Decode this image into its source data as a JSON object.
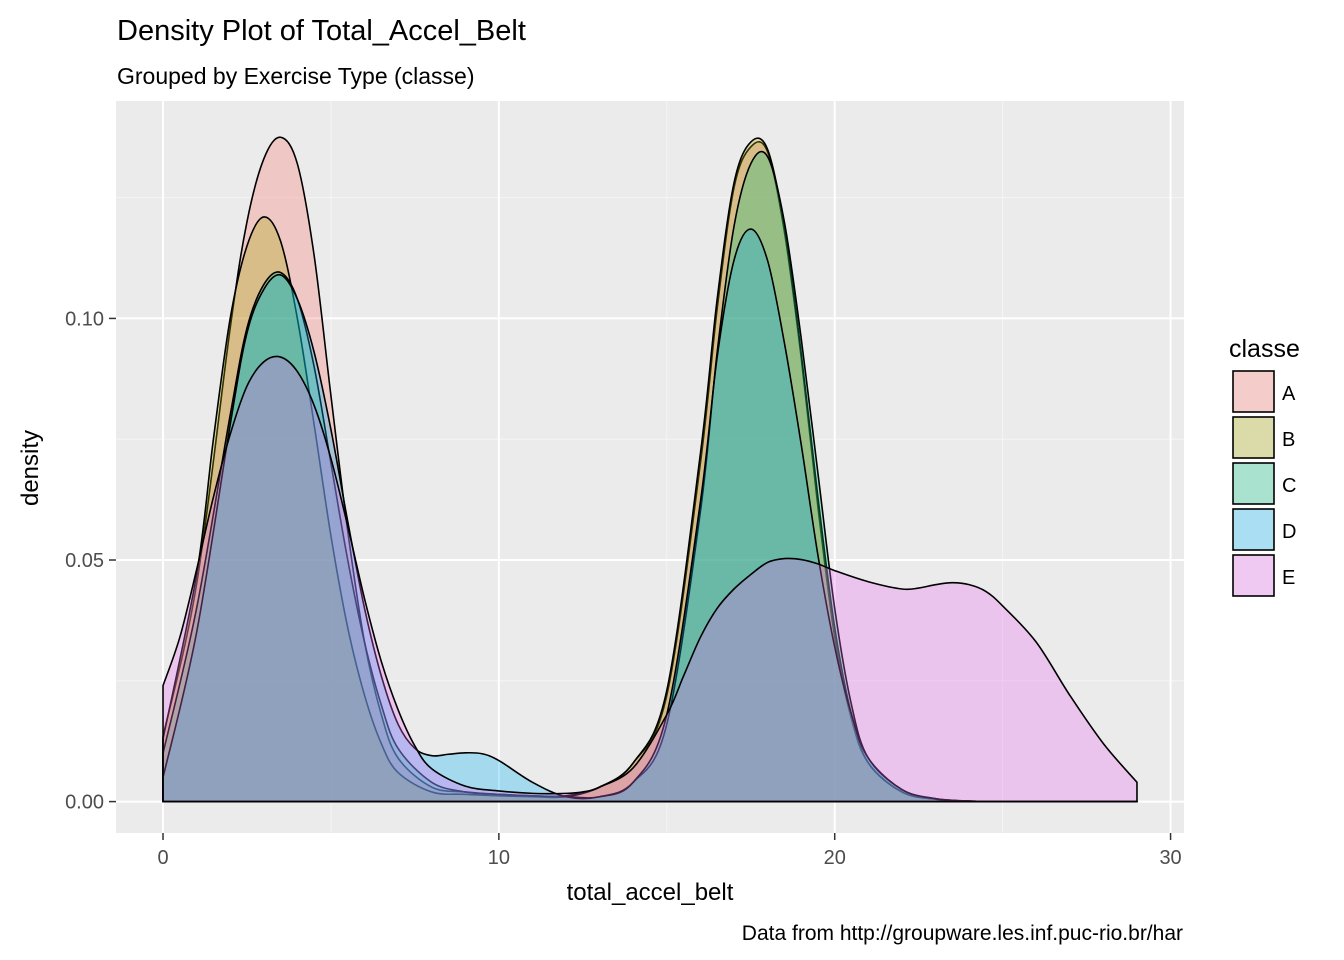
{
  "chart_data": {
    "type": "area",
    "title": "Density Plot of Total_Accel_Belt",
    "subtitle": "Grouped by Exercise Type (classe)",
    "xlabel": "total_accel_belt",
    "ylabel": "density",
    "caption": "Data from http://groupware.les.inf.puc-rio.br/har",
    "xlim": [
      -1.4,
      30.4
    ],
    "ylim": [
      -0.0065,
      0.145
    ],
    "x_ticks": [
      0,
      10,
      20,
      30
    ],
    "x_tick_labels": [
      "0",
      "10",
      "20",
      "30"
    ],
    "y_ticks": [
      0.0,
      0.05,
      0.1
    ],
    "y_tick_labels": [
      "0.00",
      "0.05",
      "0.10"
    ],
    "grid": true,
    "legend": {
      "title": "classe",
      "position": "right",
      "entries": [
        "A",
        "B",
        "C",
        "D",
        "E"
      ]
    },
    "series": [
      {
        "name": "A",
        "color": "#F8766D",
        "x": [
          0,
          1,
          2,
          2.5,
          3,
          3.5,
          4,
          4.5,
          5,
          5.5,
          6,
          6.5,
          7,
          8,
          9,
          10,
          11,
          12,
          13,
          14,
          15,
          16,
          16.5,
          17,
          17.5,
          18,
          18.5,
          19,
          19.5,
          20,
          20.5,
          21,
          22,
          23,
          24,
          25,
          26,
          27,
          28,
          29
        ],
        "y": [
          0.0135,
          0.045,
          0.098,
          0.12,
          0.133,
          0.1375,
          0.132,
          0.113,
          0.084,
          0.056,
          0.033,
          0.018,
          0.009,
          0.003,
          0.002,
          0.0015,
          0.0012,
          0.0012,
          0.003,
          0.008,
          0.022,
          0.07,
          0.102,
          0.127,
          0.1355,
          0.1345,
          0.118,
          0.092,
          0.061,
          0.034,
          0.017,
          0.008,
          0.002,
          0.0005,
          0.0001,
          0,
          0,
          0,
          0,
          0
        ]
      },
      {
        "name": "B",
        "color": "#A3A500",
        "x": [
          0,
          1,
          1.5,
          2,
          2.5,
          3,
          3.5,
          4,
          4.5,
          5,
          5.5,
          6,
          6.5,
          7,
          8,
          9,
          10,
          11,
          12,
          13,
          14,
          15,
          16,
          16.5,
          17,
          17.5,
          18,
          18.5,
          19,
          19.5,
          20,
          20.5,
          21,
          22,
          23,
          24,
          25,
          26,
          27,
          28,
          29
        ],
        "y": [
          0.013,
          0.047,
          0.075,
          0.1,
          0.115,
          0.121,
          0.116,
          0.1,
          0.078,
          0.055,
          0.036,
          0.022,
          0.012,
          0.006,
          0.002,
          0.0015,
          0.0012,
          0.001,
          0.001,
          0.003,
          0.008,
          0.023,
          0.072,
          0.104,
          0.128,
          0.1365,
          0.135,
          0.119,
          0.093,
          0.063,
          0.036,
          0.018,
          0.008,
          0.002,
          0.0005,
          0.0001,
          0,
          0,
          0,
          0,
          0
        ]
      },
      {
        "name": "C",
        "color": "#00BF7D",
        "x": [
          0,
          1,
          2,
          2.5,
          3,
          3.5,
          4,
          4.5,
          5,
          5.5,
          6,
          6.5,
          7,
          8,
          9,
          10,
          11,
          12,
          13,
          14,
          15,
          16,
          16.5,
          17,
          17.5,
          18,
          18.5,
          19,
          19.5,
          20,
          20.5,
          21,
          22,
          23,
          24,
          25,
          26,
          27,
          28,
          29
        ],
        "y": [
          0.01,
          0.04,
          0.08,
          0.098,
          0.107,
          0.1095,
          0.104,
          0.09,
          0.07,
          0.05,
          0.033,
          0.02,
          0.011,
          0.004,
          0.002,
          0.0015,
          0.0012,
          0.001,
          0.001,
          0.004,
          0.016,
          0.06,
          0.093,
          0.119,
          0.132,
          0.1335,
          0.12,
          0.096,
          0.068,
          0.04,
          0.02,
          0.009,
          0.0025,
          0.0006,
          0.0001,
          0,
          0,
          0,
          0,
          0
        ]
      },
      {
        "name": "D",
        "color": "#00B0F6",
        "x": [
          0,
          1,
          2,
          2.5,
          3,
          3.5,
          4,
          4.5,
          5,
          5.5,
          6,
          6.5,
          7,
          7.5,
          8,
          8.5,
          9,
          9.5,
          10,
          11,
          12,
          13,
          14,
          15,
          16,
          16.5,
          17,
          17.5,
          18,
          18.5,
          19,
          19.5,
          20,
          20.5,
          21,
          22,
          23,
          24,
          25,
          26,
          27,
          28,
          29
        ],
        "y": [
          0.005,
          0.035,
          0.078,
          0.097,
          0.106,
          0.109,
          0.104,
          0.093,
          0.077,
          0.058,
          0.04,
          0.026,
          0.016,
          0.011,
          0.0095,
          0.0098,
          0.0101,
          0.0099,
          0.0085,
          0.004,
          0.001,
          0.001,
          0.004,
          0.018,
          0.062,
          0.092,
          0.112,
          0.1185,
          0.112,
          0.095,
          0.074,
          0.051,
          0.032,
          0.018,
          0.009,
          0.0025,
          0.0006,
          0.0001,
          0,
          0,
          0,
          0,
          0
        ]
      },
      {
        "name": "E",
        "color": "#E76BF3",
        "x": [
          0,
          0.5,
          1,
          1.5,
          2,
          2.5,
          3,
          3.5,
          4,
          4.5,
          5,
          5.5,
          6,
          6.5,
          7,
          7.5,
          8,
          9,
          10,
          11,
          12,
          12.5,
          13,
          14,
          15,
          15.5,
          16,
          16.5,
          17,
          17.5,
          18,
          18.5,
          19,
          19.5,
          20,
          21,
          22,
          22.5,
          23,
          23.5,
          24,
          24.5,
          25,
          26,
          27,
          28,
          29
        ],
        "y": [
          0.024,
          0.034,
          0.048,
          0.063,
          0.076,
          0.086,
          0.091,
          0.092,
          0.089,
          0.082,
          0.071,
          0.057,
          0.042,
          0.029,
          0.019,
          0.0115,
          0.0068,
          0.0032,
          0.0022,
          0.0017,
          0.0017,
          0.002,
          0.003,
          0.007,
          0.018,
          0.026,
          0.034,
          0.04,
          0.044,
          0.047,
          0.0495,
          0.0503,
          0.0501,
          0.0492,
          0.0478,
          0.0455,
          0.044,
          0.0442,
          0.0449,
          0.0453,
          0.0449,
          0.0435,
          0.0405,
          0.033,
          0.022,
          0.012,
          0.004
        ]
      }
    ]
  },
  "colors": {
    "panel_bg": "#EBEBEB",
    "grid_major": "#FFFFFF",
    "grid_minor": "#F5F5F5",
    "outline": "#000000"
  }
}
